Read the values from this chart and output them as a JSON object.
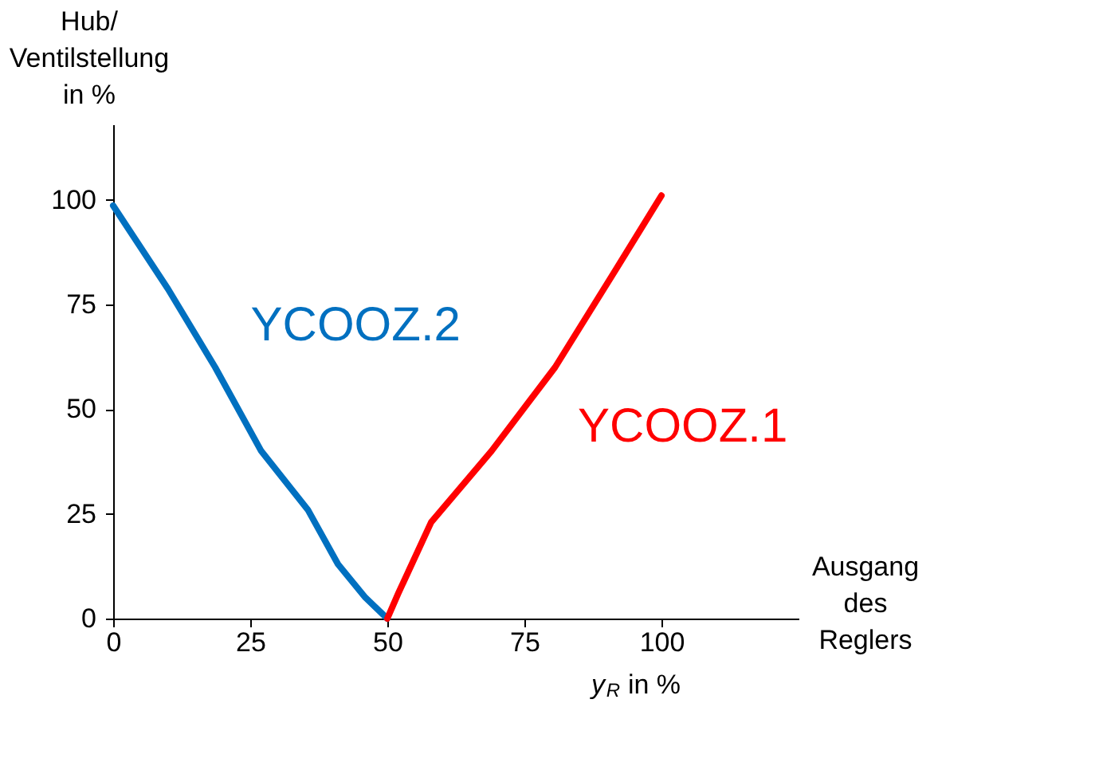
{
  "chart_data": {
    "type": "line",
    "ylabel": "Hub/\nVentilstellung\nin %",
    "xlabel": "y$_{R}$ in %",
    "annotations": [
      "Ausgang\ndes\nReglers"
    ],
    "xlim": [
      0,
      125
    ],
    "ylim": [
      0,
      118
    ],
    "xticks": [
      0,
      25,
      50,
      75,
      100
    ],
    "yticks": [
      0,
      25,
      50,
      75,
      100
    ],
    "marker": "none",
    "line_style": "solid",
    "series": [
      {
        "name": "YCOOZ.2",
        "color": "#0070c0",
        "x": [
          0,
          10,
          18.6,
          27,
          35.5,
          41,
          46,
          50
        ],
        "values": [
          98.6,
          78.7,
          60,
          40,
          26,
          13,
          5,
          0
        ]
      },
      {
        "name": "YCOOZ.1",
        "color": "#ff0000",
        "x": [
          50,
          52,
          58,
          69,
          80.6,
          92,
          100
        ],
        "values": [
          0,
          6,
          23,
          40,
          60,
          84,
          101
        ]
      }
    ]
  }
}
